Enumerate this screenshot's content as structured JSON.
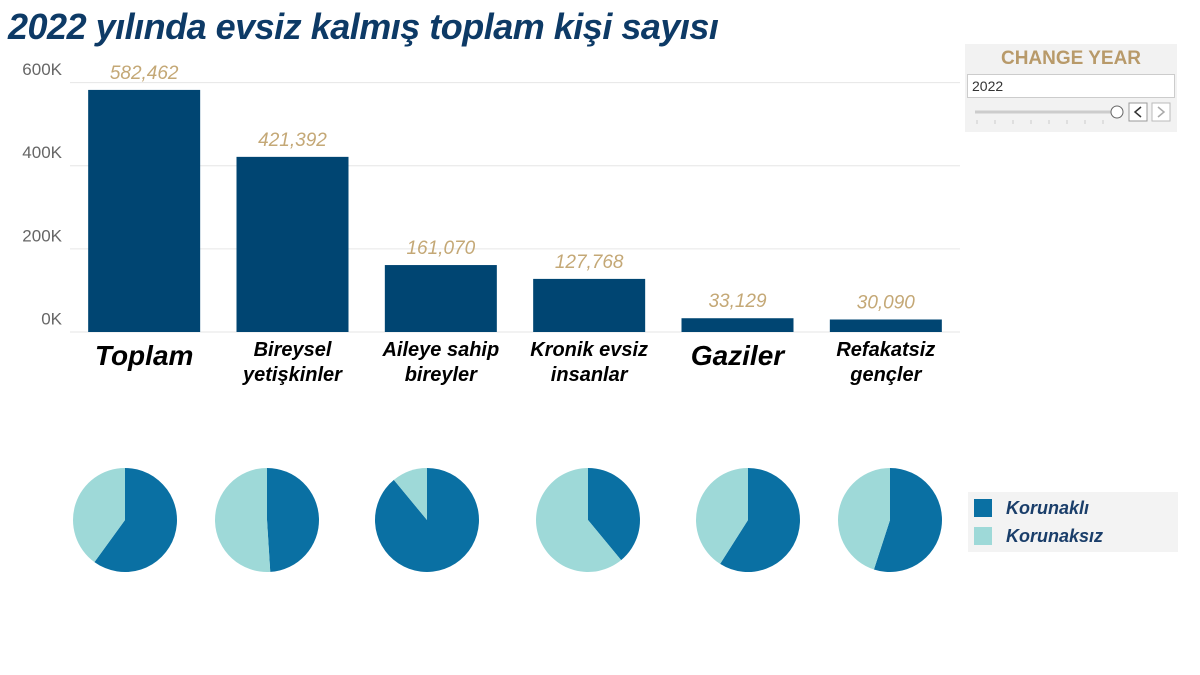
{
  "chart_data": [
    {
      "type": "bar",
      "title": "2022 yılında evsiz kalmış toplam kişi sayısı",
      "categories": [
        "Toplam",
        "Bireysel yetişkinler",
        "Aileye sahip bireyler",
        "Kronik evsiz insanlar",
        "Gaziler",
        "Refakatsiz gençler"
      ],
      "values": [
        582462,
        421392,
        161070,
        127768,
        33129,
        30090
      ],
      "value_labels": [
        "582,462",
        "421,392",
        "161,070",
        "127,768",
        "33,129",
        "30,090"
      ],
      "color": "#004572",
      "ylim": [
        0,
        640000
      ],
      "yticks": [
        {
          "value": 0,
          "label": "0K"
        },
        {
          "value": 200000,
          "label": "200K"
        },
        {
          "value": 400000,
          "label": "400K"
        },
        {
          "value": 600000,
          "label": "600K"
        }
      ],
      "grid": true
    },
    {
      "type": "pie",
      "series": [
        {
          "name": "Korunaklı",
          "color": "#0a70a3",
          "values": [
            60,
            49,
            89,
            39,
            59,
            55
          ]
        },
        {
          "name": "Korunaksız",
          "color": "#9ed9d8",
          "values": [
            40,
            51,
            11,
            61,
            41,
            45
          ]
        }
      ],
      "legend": "right"
    }
  ],
  "controls": {
    "title": "CHANGE YEAR",
    "year": "2022"
  }
}
